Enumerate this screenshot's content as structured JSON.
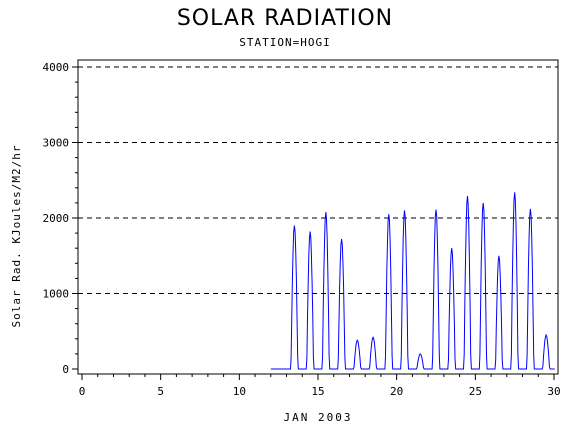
{
  "header": {
    "title": "SOLAR RADIATION",
    "subtitle": "STATION=HOGI"
  },
  "chart_data": {
    "type": "line",
    "title": "SOLAR RADIATION",
    "subtitle": "STATION=HOGI",
    "xlabel": "JAN 2003",
    "ylabel": "Solar Rad. KJoules/M2/hr",
    "xlim": [
      0,
      30
    ],
    "ylim": [
      0,
      4000
    ],
    "xticks": [
      0,
      5,
      10,
      15,
      20,
      25,
      30
    ],
    "yticks": [
      0,
      1000,
      2000,
      3000,
      4000
    ],
    "grid": "horizontal-dashed",
    "line_color": "#0000ff",
    "daily_peaks": [
      {
        "day": 13,
        "peak": 1900
      },
      {
        "day": 14,
        "peak": 1820
      },
      {
        "day": 15,
        "peak": 2080
      },
      {
        "day": 16,
        "peak": 1720
      },
      {
        "day": 17,
        "peak": 380
      },
      {
        "day": 18,
        "peak": 420
      },
      {
        "day": 19,
        "peak": 2050
      },
      {
        "day": 20,
        "peak": 2100
      },
      {
        "day": 21,
        "peak": 200
      },
      {
        "day": 22,
        "peak": 2110
      },
      {
        "day": 23,
        "peak": 1600
      },
      {
        "day": 24,
        "peak": 2290
      },
      {
        "day": 25,
        "peak": 2200
      },
      {
        "day": 26,
        "peak": 1500
      },
      {
        "day": 27,
        "peak": 2340
      },
      {
        "day": 28,
        "peak": 2120
      },
      {
        "day": 29,
        "peak": 450
      }
    ]
  }
}
